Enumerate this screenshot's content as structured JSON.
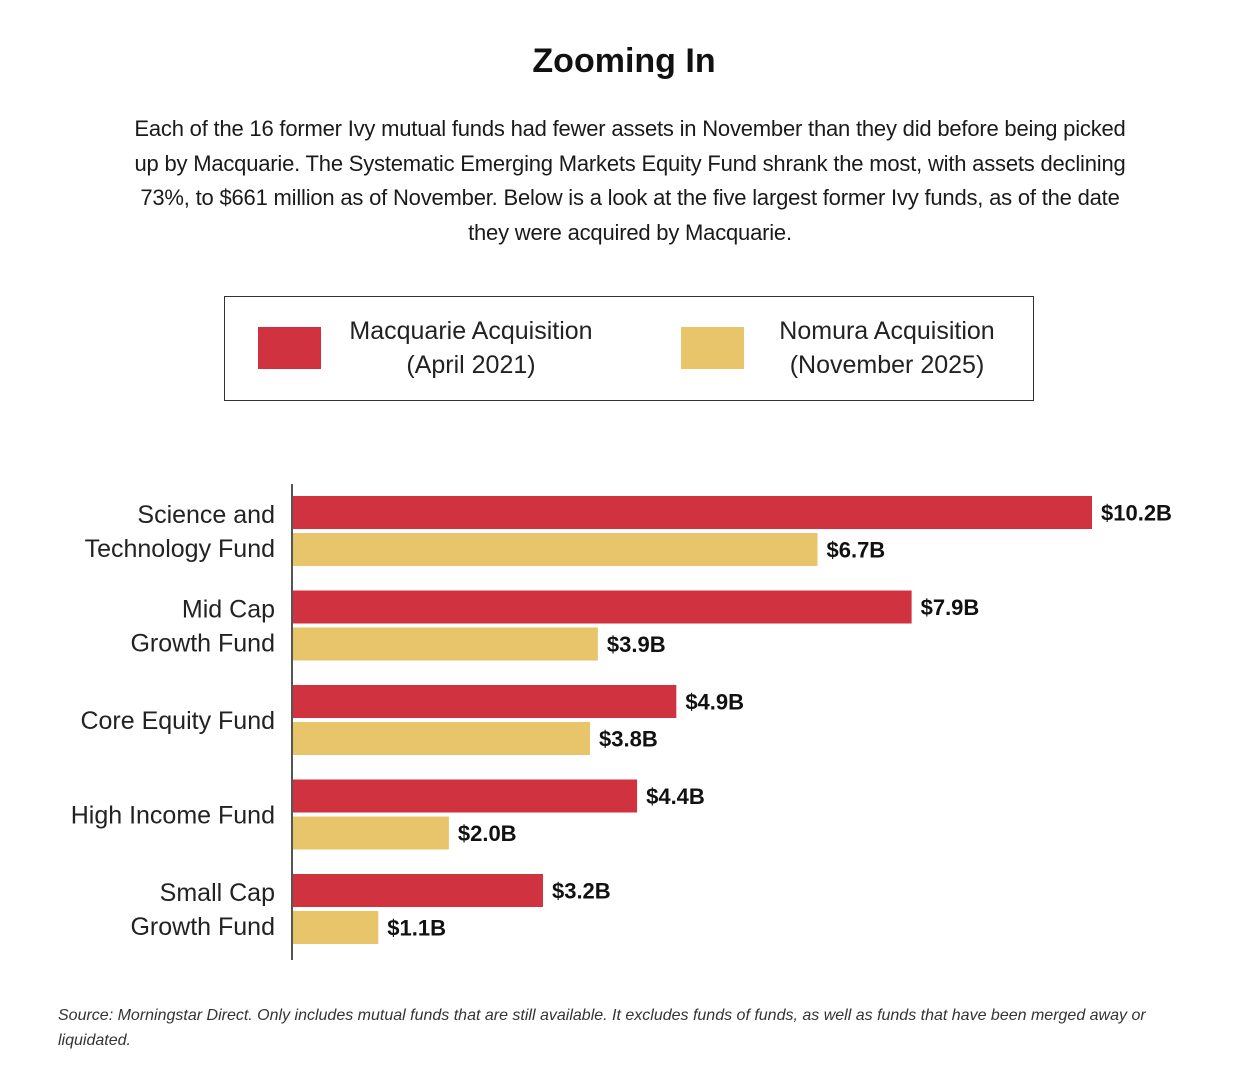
{
  "title": "Zooming In",
  "subtitle": "Each of the 16 former Ivy mutual funds had fewer assets in November than they did before being picked up by Macquarie. The Systematic Emerging Markets Equity Fund shrank the most, with assets declining 73%, to $661 million as of November. Below is a look at the five largest former Ivy funds, as of the date they were acquired by Macquarie.",
  "legend": {
    "series1": {
      "line1": "Macquarie Acquisition",
      "line2": "(April 2021)"
    },
    "series2": {
      "line1": "Nomura Acquisition",
      "line2": "(November 2025)"
    }
  },
  "colors": {
    "series1": "#d0333f",
    "series2": "#e8c56b",
    "text": "#111111"
  },
  "footnote": "Source: Morningstar Direct. Only includes mutual funds that are still available. It excludes funds of funds, as well as funds that have been merged away or liquidated.",
  "chart_data": {
    "type": "bar",
    "orientation": "horizontal",
    "categories": [
      [
        "Science and",
        "Technology Fund"
      ],
      [
        "Mid Cap",
        "Growth Fund"
      ],
      [
        "Core Equity Fund"
      ],
      [
        "High Income Fund"
      ],
      [
        "Small Cap",
        "Growth Fund"
      ]
    ],
    "series": [
      {
        "name": "Macquarie Acquisition (April 2021)",
        "values": [
          10.2,
          7.9,
          4.9,
          4.4,
          3.2
        ],
        "labels": [
          "$10.2B",
          "$7.9B",
          "$4.9B",
          "$4.4B",
          "$3.2B"
        ]
      },
      {
        "name": "Nomura Acquisition (November 2025)",
        "values": [
          6.7,
          3.9,
          3.8,
          2.0,
          1.1
        ],
        "labels": [
          "$6.7B",
          "$3.9B",
          "$3.8B",
          "$2.0B",
          "$1.1B"
        ]
      }
    ],
    "xlim": [
      0,
      10.2
    ],
    "grid": false,
    "legend_position": "top"
  }
}
